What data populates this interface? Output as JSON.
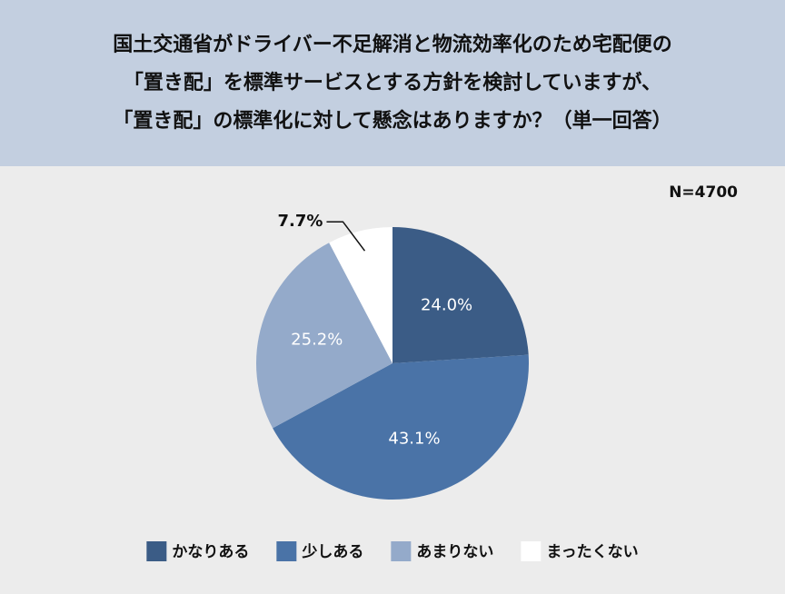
{
  "chart_data": {
    "type": "pie",
    "title": [
      "国土交通省がドライバー不足解消と物流効率化のため宅配便の",
      "「置き配」を標準サービスとする方針を検討していますが、",
      "「置き配」の標準化に対して懸念はありますか？（単一回答）"
    ],
    "annotation": "N=4700",
    "categories": [
      "かなりある",
      "少しある",
      "あまりない",
      "まったくない"
    ],
    "values": [
      24.0,
      43.1,
      25.2,
      7.7
    ],
    "value_labels": [
      "24.0%",
      "43.1%",
      "25.2%",
      "7.7%"
    ],
    "colors": [
      "#3b5c86",
      "#4a73a7",
      "#94aaca",
      "#ffffff"
    ],
    "legend": "bottom"
  }
}
